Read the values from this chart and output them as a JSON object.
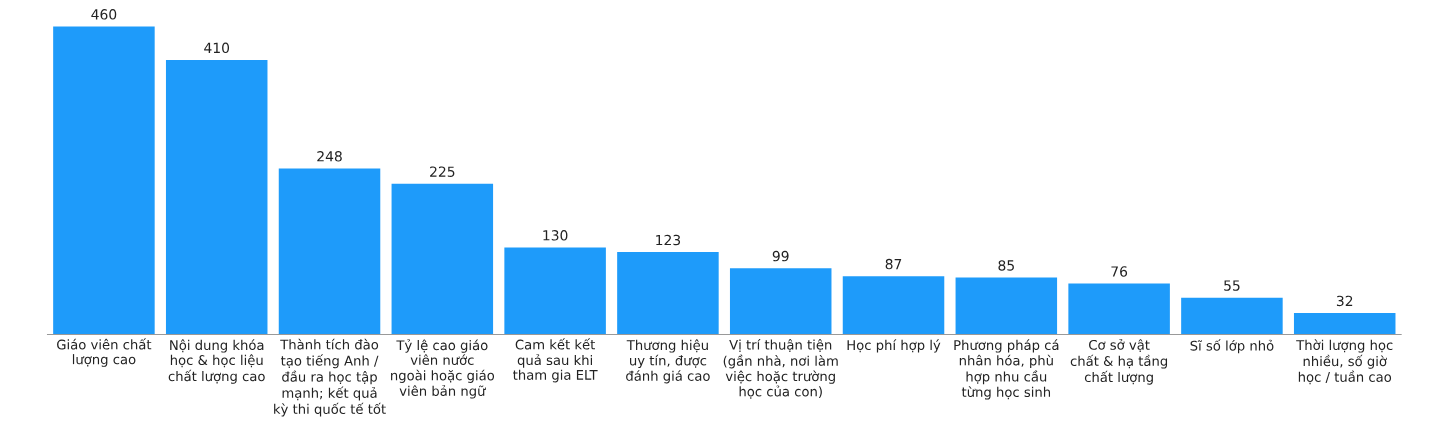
{
  "chart_data": {
    "type": "bar",
    "categories": [
      "Giáo viên chất\nlượng cao",
      "Nội dung khóa\nhọc & học liệu\nchất lượng cao",
      "Thành tích đào\ntạo tiếng Anh /\nđầu ra học tập\nmạnh; kết quả\nkỳ thi quốc tế tốt",
      "Tỷ lệ cao giáo\nviên nước\nngoài hoặc giáo\nviên bản ngữ",
      "Cam kết kết\nquả sau khi\ntham gia ELT",
      "Thương hiệu\nuy tín, được\nđánh giá cao",
      "Vị trí thuận tiện\n(gần nhà, nơi làm\nviệc hoặc trường\nhọc của con)",
      "Học phí hợp lý",
      "Phương pháp cá\nnhân hóa, phù\nhợp nhu cầu\ntừng học sinh",
      "Cơ sở vật\nchất & hạ tầng\nchất lượng",
      "Sĩ số lớp nhỏ",
      "Thời lượng học\nnhiều, số giờ\nhọc / tuần cao"
    ],
    "values": [
      460,
      410,
      248,
      225,
      130,
      123,
      99,
      87,
      85,
      76,
      55,
      32
    ],
    "color": "#1e9bfa",
    "data_labels": true,
    "tick_labels": "x"
  }
}
